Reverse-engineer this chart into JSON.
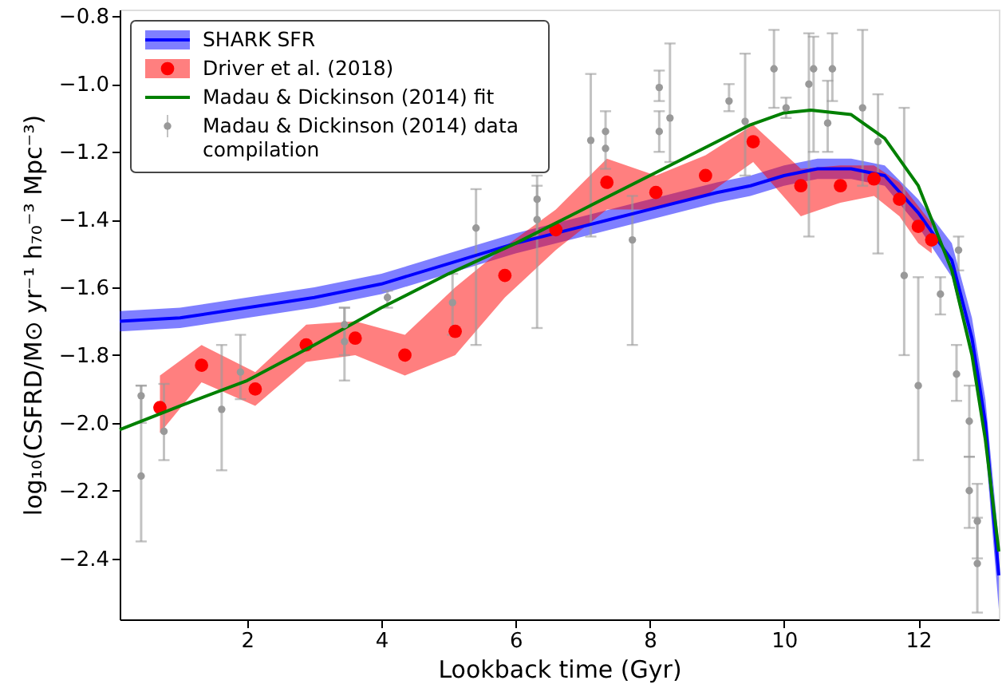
{
  "chart_data": {
    "type": "line",
    "xlabel": "Lookback time (Gyr)",
    "ylabel": "log₁₀(CSFRD/M⊙ yr⁻¹ h₇₀⁻³ Mpc⁻³)",
    "xlim": [
      0.1,
      13.2
    ],
    "ylim": [
      -2.58,
      -0.78
    ],
    "xticks": [
      2,
      4,
      6,
      8,
      10,
      12
    ],
    "yticks": [
      {
        "value": -2.4,
        "label": "−2.4"
      },
      {
        "value": -2.2,
        "label": "−2.2"
      },
      {
        "value": -2.0,
        "label": "−2.0"
      },
      {
        "value": -1.8,
        "label": "−1.8"
      },
      {
        "value": -1.6,
        "label": "−1.6"
      },
      {
        "value": -1.4,
        "label": "−1.4"
      },
      {
        "value": -1.2,
        "label": "−1.2"
      },
      {
        "value": -1.0,
        "label": "−1.0"
      },
      {
        "value": -0.8,
        "label": "−0.8"
      }
    ],
    "grid": false,
    "legend": "top left",
    "series": [
      {
        "name": "SHARK SFR",
        "color": "#0000ff",
        "line_style": "solid",
        "x": [
          0.1,
          1,
          2,
          3,
          4,
          5,
          6,
          7,
          8,
          9,
          9.5,
          10,
          10.5,
          11,
          11.5,
          12,
          12.5,
          12.8,
          13,
          13.2
        ],
        "values": [
          -1.7,
          -1.69,
          -1.66,
          -1.63,
          -1.59,
          -1.53,
          -1.47,
          -1.42,
          -1.37,
          -1.32,
          -1.3,
          -1.27,
          -1.25,
          -1.25,
          -1.27,
          -1.38,
          -1.52,
          -1.75,
          -2.0,
          -2.45
        ],
        "lower": [
          -1.73,
          -1.72,
          -1.69,
          -1.66,
          -1.62,
          -1.56,
          -1.5,
          -1.45,
          -1.4,
          -1.35,
          -1.33,
          -1.3,
          -1.28,
          -1.28,
          -1.3,
          -1.42,
          -1.57,
          -1.81,
          -2.07,
          -2.55
        ],
        "upper": [
          -1.67,
          -1.66,
          -1.63,
          -1.6,
          -1.56,
          -1.5,
          -1.44,
          -1.39,
          -1.34,
          -1.29,
          -1.27,
          -1.24,
          -1.22,
          -1.22,
          -1.24,
          -1.34,
          -1.47,
          -1.69,
          -1.93,
          -2.35
        ]
      },
      {
        "name": "Driver et al. (2018)",
        "type": "scatter",
        "color": "#ff0000",
        "marker": "circle",
        "x": [
          0.7,
          1.32,
          2.12,
          2.88,
          3.61,
          4.35,
          5.1,
          5.84,
          6.6,
          7.36,
          8.09,
          8.83,
          9.54,
          10.25,
          10.84,
          11.34,
          11.72,
          12.0,
          12.2
        ],
        "values": [
          -1.955,
          -1.83,
          -1.9,
          -1.77,
          -1.75,
          -1.8,
          -1.73,
          -1.565,
          -1.43,
          -1.29,
          -1.32,
          -1.27,
          -1.17,
          -1.3,
          -1.3,
          -1.28,
          -1.34,
          -1.42,
          -1.46
        ],
        "lower": [
          -2.03,
          -1.88,
          -1.95,
          -1.82,
          -1.8,
          -1.86,
          -1.8,
          -1.63,
          -1.49,
          -1.37,
          -1.37,
          -1.33,
          -1.23,
          -1.39,
          -1.35,
          -1.33,
          -1.39,
          -1.47,
          -1.5
        ],
        "upper": [
          -1.86,
          -1.77,
          -1.85,
          -1.71,
          -1.7,
          -1.74,
          -1.6,
          -1.48,
          -1.37,
          -1.22,
          -1.27,
          -1.21,
          -1.12,
          -1.25,
          -1.24,
          -1.24,
          -1.29,
          -1.36,
          -1.41
        ]
      },
      {
        "name": "Madau & Dickinson (2014) fit",
        "color": "#008000",
        "line_style": "solid",
        "x": [
          0.1,
          1,
          2,
          3,
          4,
          5,
          6,
          7,
          8,
          9,
          9.5,
          10,
          10.4,
          11,
          11.5,
          12,
          12.5,
          12.8,
          13,
          13.2
        ],
        "values": [
          -2.02,
          -1.95,
          -1.875,
          -1.77,
          -1.66,
          -1.56,
          -1.47,
          -1.37,
          -1.27,
          -1.17,
          -1.12,
          -1.085,
          -1.077,
          -1.09,
          -1.16,
          -1.3,
          -1.55,
          -1.8,
          -2.05,
          -2.38
        ]
      },
      {
        "name": "Madau & Dickinson (2014) data compilation",
        "type": "scatter",
        "color": "#999999",
        "marker": "circle",
        "x": [
          0.42,
          0.42,
          0.76,
          1.62,
          1.9,
          3.45,
          3.45,
          4.09,
          5.06,
          5.41,
          6.32,
          6.32,
          7.12,
          7.34,
          7.34,
          7.74,
          8.14,
          8.14,
          8.3,
          9.18,
          9.42,
          9.85,
          10.03,
          10.37,
          10.44,
          10.65,
          10.72,
          11.17,
          11.4,
          11.79,
          12.0,
          12.33,
          12.57,
          12.6,
          12.76,
          12.76,
          12.88,
          12.88
        ],
        "values": [
          -2.157,
          -1.92,
          -2.025,
          -1.96,
          -1.85,
          -1.76,
          -1.71,
          -1.63,
          -1.645,
          -1.425,
          -1.34,
          -1.4,
          -1.166,
          -1.14,
          -1.19,
          -1.46,
          -1.01,
          -1.14,
          -1.1,
          -1.05,
          -1.11,
          -0.955,
          -1.07,
          -1.0,
          -0.955,
          -1.115,
          -0.955,
          -1.07,
          -1.17,
          -1.565,
          -1.89,
          -1.62,
          -1.856,
          -1.49,
          -1.995,
          -2.2,
          -2.29,
          -2.415
        ],
        "errors": [
          [
            -2.35,
            -1.89
          ],
          [
            -2.0,
            -1.89
          ],
          [
            -2.11,
            -1.885
          ],
          [
            -2.14,
            -1.77
          ],
          [
            -1.93,
            -1.74
          ],
          [
            -1.875,
            -1.66
          ],
          [
            -1.8,
            -1.66
          ],
          [
            -1.66,
            -1.61
          ],
          [
            -1.74,
            -1.56
          ],
          [
            -1.77,
            -1.31
          ],
          [
            -1.72,
            -1.27
          ],
          [
            -1.45,
            -1.3
          ],
          [
            -1.45,
            -0.97
          ],
          [
            -1.25,
            -1.08
          ],
          null,
          [
            -1.77,
            -1.33
          ],
          [
            -1.05,
            -0.96
          ],
          [
            -1.2,
            -1.08
          ],
          [
            -1.23,
            -0.88
          ],
          [
            -1.08,
            -1.0
          ],
          [
            -1.27,
            -0.91
          ],
          [
            -1.07,
            -0.84
          ],
          [
            -1.1,
            -1.04
          ],
          [
            -1.45,
            -0.85
          ],
          [
            -1.2,
            -0.86
          ],
          [
            -1.2,
            -0.99
          ],
          [
            -1.05,
            -0.85
          ],
          [
            -1.3,
            -0.84
          ],
          [
            -1.5,
            -1.03
          ],
          [
            -1.8,
            -1.07
          ],
          [
            -2.11,
            -1.57
          ],
          [
            -1.68,
            -1.57
          ],
          [
            -1.935,
            -1.77
          ],
          [
            -1.55,
            -1.45
          ],
          [
            -2.1,
            -1.89
          ],
          [
            -2.31,
            -2.1
          ],
          [
            -2.4,
            -2.18
          ],
          [
            -2.56,
            -2.28
          ]
        ]
      }
    ]
  }
}
